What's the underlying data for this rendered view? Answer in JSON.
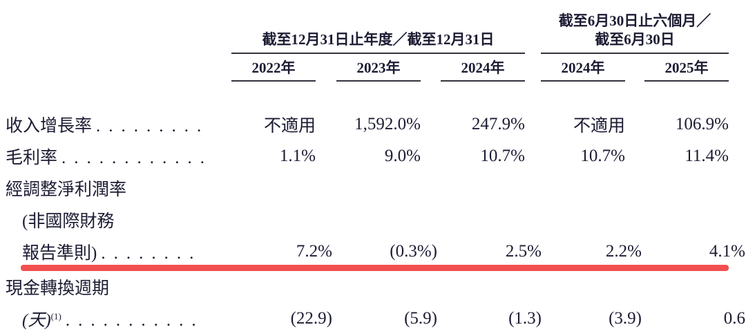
{
  "header": {
    "group1": "截至12月31日止年度／截至12月31日",
    "group2_line1": "截至6月30日止六個月／",
    "group2_line2": "截至6月30日",
    "years": [
      "2022年",
      "2023年",
      "2024年",
      "2024年",
      "2025年"
    ]
  },
  "rows": {
    "revenue_growth": {
      "label": "收入增長率",
      "dots": ".........",
      "values": [
        "不適用",
        "1,592.0%",
        "247.9%",
        "不適用",
        "106.9%"
      ]
    },
    "gross_margin": {
      "label": "毛利率",
      "dots": "............",
      "values": [
        "1.1%",
        "9.0%",
        "10.7%",
        "10.7%",
        "11.4%"
      ]
    },
    "adjusted_net_margin": {
      "label_line1": "經調整淨利潤率",
      "label_line2": "(非國際財務",
      "label_line3": "報告準則)",
      "dots": "........",
      "values": [
        "7.2%",
        "(0.3%)",
        "2.5%",
        "2.2%",
        "4.1%"
      ]
    },
    "cash_conversion": {
      "label_line1": "現金轉換週期",
      "label_line2": "(天)",
      "note_ref": "(1)",
      "dots": "...........",
      "values": [
        "(22.9)",
        "(5.9)",
        "(1.3)",
        "(3.9)",
        "0.6"
      ]
    }
  },
  "colors": {
    "highlight_red": "#f24f4f",
    "ink": "#1b1b33",
    "rule": "#33333f"
  }
}
